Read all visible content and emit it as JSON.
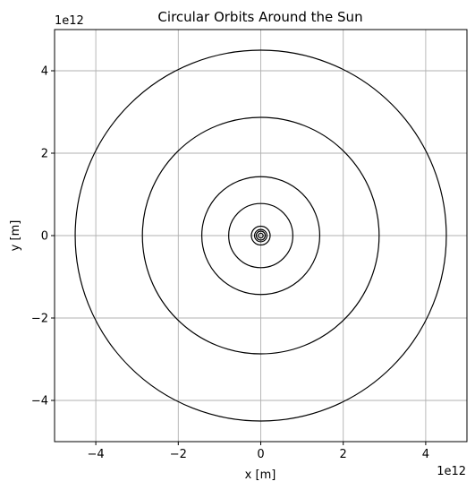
{
  "chart_data": {
    "type": "line",
    "title": "Circular Orbits Around the Sun",
    "xlabel": "x [m]",
    "ylabel": "y [m]",
    "x_offset_label": "1e12",
    "y_offset_label": "1e12",
    "xlim": [
      -5,
      5
    ],
    "ylim": [
      -5,
      5
    ],
    "xticks": [
      -4,
      -2,
      0,
      2,
      4
    ],
    "yticks": [
      -4,
      -2,
      0,
      2,
      4
    ],
    "xtick_labels": [
      "−4",
      "−2",
      "0",
      "2",
      "4"
    ],
    "ytick_labels": [
      "−4",
      "−2",
      "0",
      "2",
      "4"
    ],
    "grid": true,
    "orbit_color": "#000000",
    "grid_color": "#b0b0b0",
    "orbit_radii": [
      0.058,
      0.108,
      0.15,
      0.228,
      0.778,
      1.43,
      2.87,
      4.5
    ]
  }
}
